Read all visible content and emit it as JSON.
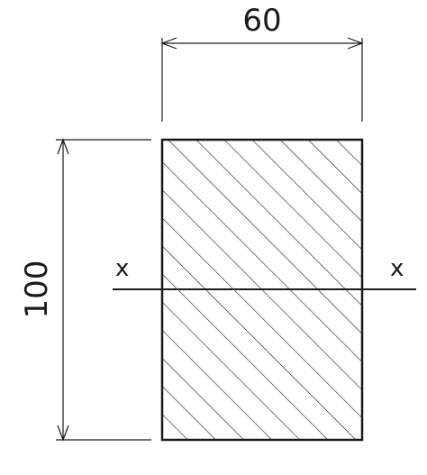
{
  "diagram": {
    "title": "",
    "width_label": "60",
    "height_label": "100",
    "axis_left_label": "x",
    "axis_right_label": "x",
    "section": {
      "width": 60,
      "height": 100,
      "fill": "diagonal-hatch",
      "neutral_axis": "x-x"
    }
  },
  "colors": {
    "line": "#1a1a1a",
    "background": "#ffffff"
  }
}
